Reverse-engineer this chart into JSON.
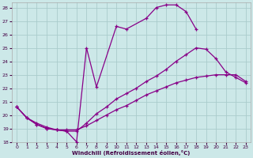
{
  "xlabel": "Windchill (Refroidissement éolien,°C)",
  "bg_color": "#cce8e8",
  "grid_color": "#aacccc",
  "line_color": "#880088",
  "xlim": [
    -0.5,
    23.5
  ],
  "ylim": [
    18,
    28.4
  ],
  "yticks": [
    18,
    19,
    20,
    21,
    22,
    23,
    24,
    25,
    26,
    27,
    28
  ],
  "xticks": [
    0,
    1,
    2,
    3,
    4,
    5,
    6,
    7,
    8,
    9,
    10,
    11,
    12,
    13,
    14,
    15,
    16,
    17,
    18,
    19,
    20,
    21,
    22,
    23
  ],
  "line1_x": [
    0,
    1,
    2,
    3,
    4,
    5,
    6,
    7,
    8,
    10,
    11,
    13,
    14,
    15,
    16,
    17,
    18
  ],
  "line1_y": [
    20.6,
    19.8,
    19.3,
    19.0,
    18.9,
    18.8,
    18.0,
    25.0,
    22.1,
    26.6,
    26.4,
    27.2,
    28.0,
    28.2,
    28.2,
    27.7,
    26.4
  ],
  "line2_x": [
    0,
    1,
    2,
    3,
    4,
    5,
    6,
    7,
    8,
    9,
    10,
    11,
    12,
    13,
    14,
    15,
    16,
    17,
    18,
    19,
    20,
    21,
    22,
    23
  ],
  "line2_y": [
    20.6,
    19.8,
    19.3,
    19.0,
    18.9,
    18.8,
    18.8,
    19.4,
    20.1,
    20.6,
    21.2,
    21.6,
    22.0,
    22.5,
    22.9,
    23.4,
    24.0,
    24.5,
    25.0,
    24.9,
    24.2,
    23.2,
    22.8,
    22.4
  ],
  "line3_x": [
    0,
    1,
    2,
    3,
    4,
    5,
    6,
    7,
    8,
    9,
    10,
    11,
    12,
    13,
    14,
    15,
    16,
    17,
    18,
    19,
    20,
    21,
    22,
    23
  ],
  "line3_y": [
    20.6,
    19.8,
    19.4,
    19.1,
    18.9,
    18.9,
    18.9,
    19.2,
    19.6,
    20.0,
    20.4,
    20.7,
    21.1,
    21.5,
    21.8,
    22.1,
    22.4,
    22.6,
    22.8,
    22.9,
    23.0,
    23.0,
    23.0,
    22.5
  ]
}
